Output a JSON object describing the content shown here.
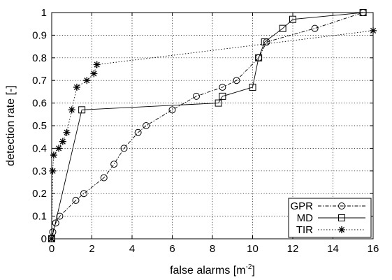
{
  "chart_data": {
    "type": "line",
    "title": "",
    "xlabel": "false alarms [m",
    "xlabel_superscript": "-2",
    "xlabel_suffix": "]",
    "ylabel": "detection rate [-]",
    "xlim": [
      0,
      16
    ],
    "ylim": [
      0,
      1
    ],
    "x_ticks": [
      0,
      2,
      4,
      6,
      8,
      10,
      12,
      14,
      16
    ],
    "x_tick_labels": [
      "0",
      "2",
      "4",
      "6",
      "8",
      "10",
      "12",
      "14",
      "16"
    ],
    "y_ticks": [
      0,
      0.1,
      0.2,
      0.3,
      0.4,
      0.5,
      0.6,
      0.7,
      0.8,
      0.9,
      1
    ],
    "y_tick_labels": [
      "0",
      "0.1",
      "0.2",
      "0.3",
      "0.4",
      "0.5",
      "0.6",
      "0.7",
      "0.8",
      "0.9",
      "1"
    ],
    "grid": true,
    "legend_position": "bottom-right",
    "series": [
      {
        "name": "GPR",
        "marker": "circle",
        "line_style": "dash-dot",
        "color": "#000000",
        "x": [
          0,
          0.05,
          0.2,
          0.4,
          1.2,
          1.6,
          2.6,
          3.1,
          3.6,
          4.3,
          4.7,
          6.0,
          7.2,
          8.5,
          9.2,
          10.3,
          10.7,
          13.1,
          15.5
        ],
        "y": [
          0,
          0.03,
          0.07,
          0.1,
          0.17,
          0.2,
          0.27,
          0.33,
          0.4,
          0.47,
          0.5,
          0.57,
          0.63,
          0.67,
          0.7,
          0.8,
          0.87,
          0.93,
          1
        ]
      },
      {
        "name": "MD",
        "marker": "square",
        "line_style": "solid",
        "color": "#000000",
        "x": [
          0,
          1.5,
          8.3,
          8.5,
          10.0,
          10.3,
          10.6,
          11.5,
          12.0,
          15.5
        ],
        "y": [
          0,
          0.57,
          0.6,
          0.63,
          0.67,
          0.8,
          0.87,
          0.93,
          0.97,
          1
        ]
      },
      {
        "name": "TIR",
        "marker": "star",
        "line_style": "dotted",
        "color": "#000000",
        "x": [
          0,
          0.05,
          0.1,
          0.35,
          0.55,
          0.75,
          1.0,
          1.25,
          1.75,
          2.1,
          2.25,
          16.0
        ],
        "y": [
          0,
          0.3,
          0.37,
          0.4,
          0.43,
          0.47,
          0.57,
          0.67,
          0.7,
          0.73,
          0.77,
          0.92
        ]
      }
    ]
  }
}
